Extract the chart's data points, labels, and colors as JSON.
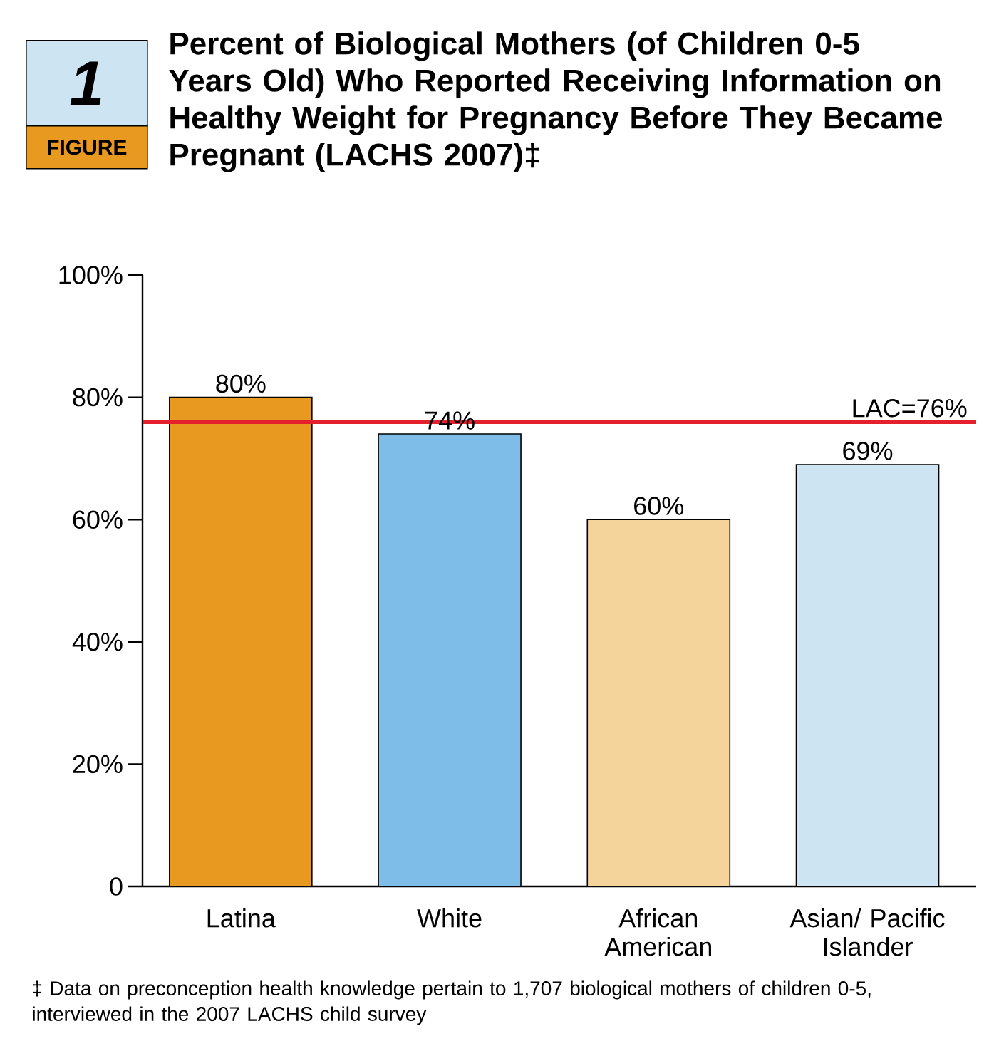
{
  "chart_data": {
    "type": "bar",
    "title": "Percent of Biological Mothers (of Children 0-5 Years Old) Who Reported Receiving Information on Healthy Weight for Pregnancy Before They Became Pregnant (LACHS 2007)‡",
    "categories": [
      "Latina",
      "White",
      "African American",
      "Asian/ Pacific Islander"
    ],
    "values": [
      80,
      74,
      60,
      69
    ],
    "colors": [
      "#e89a20",
      "#7dbde8",
      "#f5d49c",
      "#cde5f3"
    ],
    "value_labels": [
      "80%",
      "74%",
      "60%",
      "69%"
    ],
    "ylim": [
      0,
      100
    ],
    "yticks": [
      {
        "value": 0,
        "label": "0"
      },
      {
        "value": 20,
        "label": "20%"
      },
      {
        "value": 40,
        "label": "40%"
      },
      {
        "value": 60,
        "label": "60%"
      },
      {
        "value": 80,
        "label": "80%"
      },
      {
        "value": 100,
        "label": "100%"
      }
    ],
    "ref_lines": [
      {
        "axis": "y",
        "value": 76,
        "label": "LAC=76%",
        "color": "#e3202b"
      }
    ],
    "grid": false,
    "annotations": [
      "1",
      "FIGURE",
      "‡ Data on preconception health knowledge pertain to 1,707 biological mothers of children 0-5, interviewed in the 2007 LACHS child survey"
    ]
  }
}
